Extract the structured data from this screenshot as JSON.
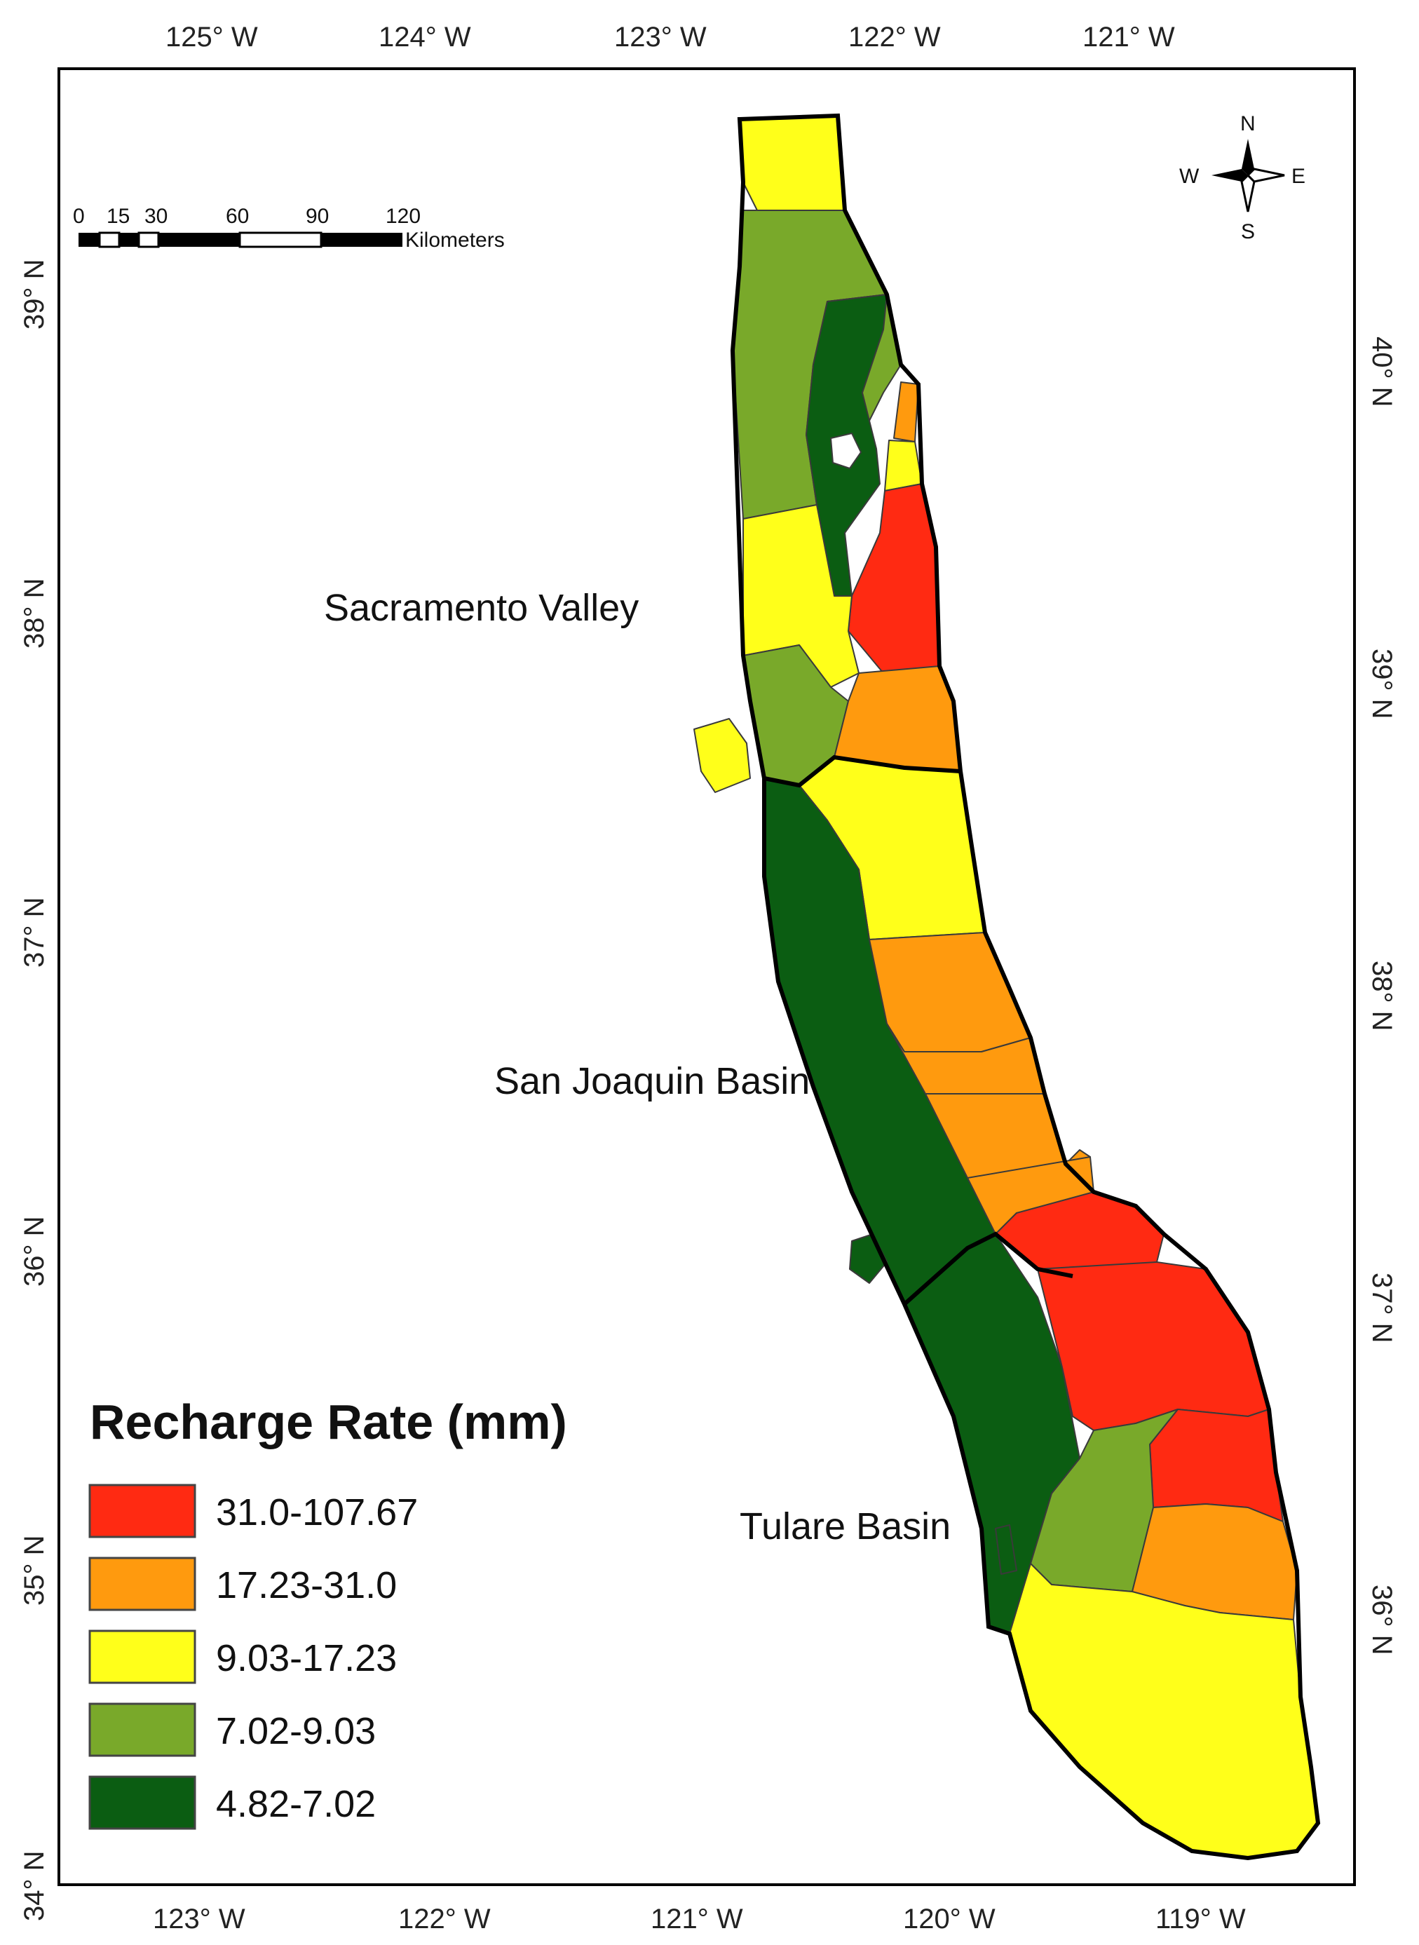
{
  "map": {
    "top_ticks": [
      "125° W",
      "124° W",
      "123° W",
      "122° W",
      "121° W"
    ],
    "bottom_ticks": [
      "123° W",
      "122° W",
      "121° W",
      "120° W",
      "119° W"
    ],
    "left_ticks": [
      "39° N",
      "38° N",
      "37° N",
      "36° N",
      "35° N",
      "34° N"
    ],
    "right_ticks": [
      "40° N",
      "39° N",
      "38° N",
      "37° N",
      "36° N"
    ],
    "regions": {
      "sacramento": "Sacramento Valley",
      "san_joaquin": "San Joaquin Basin",
      "tulare": "Tulare Basin"
    },
    "scale_bar": {
      "labels": [
        "0",
        "15",
        "30",
        "60",
        "90",
        "120"
      ],
      "unit": "Kilometers"
    },
    "compass": {
      "n": "N",
      "s": "S",
      "e": "E",
      "w": "W"
    }
  },
  "legend": {
    "title": "Recharge Rate (mm)",
    "items": [
      {
        "label": "31.0-107.67",
        "color": "#ff2a12"
      },
      {
        "label": "17.23-31.0",
        "color": "#ff9a0e"
      },
      {
        "label": "9.03-17.23",
        "color": "#ffff1a"
      },
      {
        "label": "7.02-9.03",
        "color": "#79a92a"
      },
      {
        "label": "4.82-7.02",
        "color": "#0b5d12"
      }
    ]
  }
}
